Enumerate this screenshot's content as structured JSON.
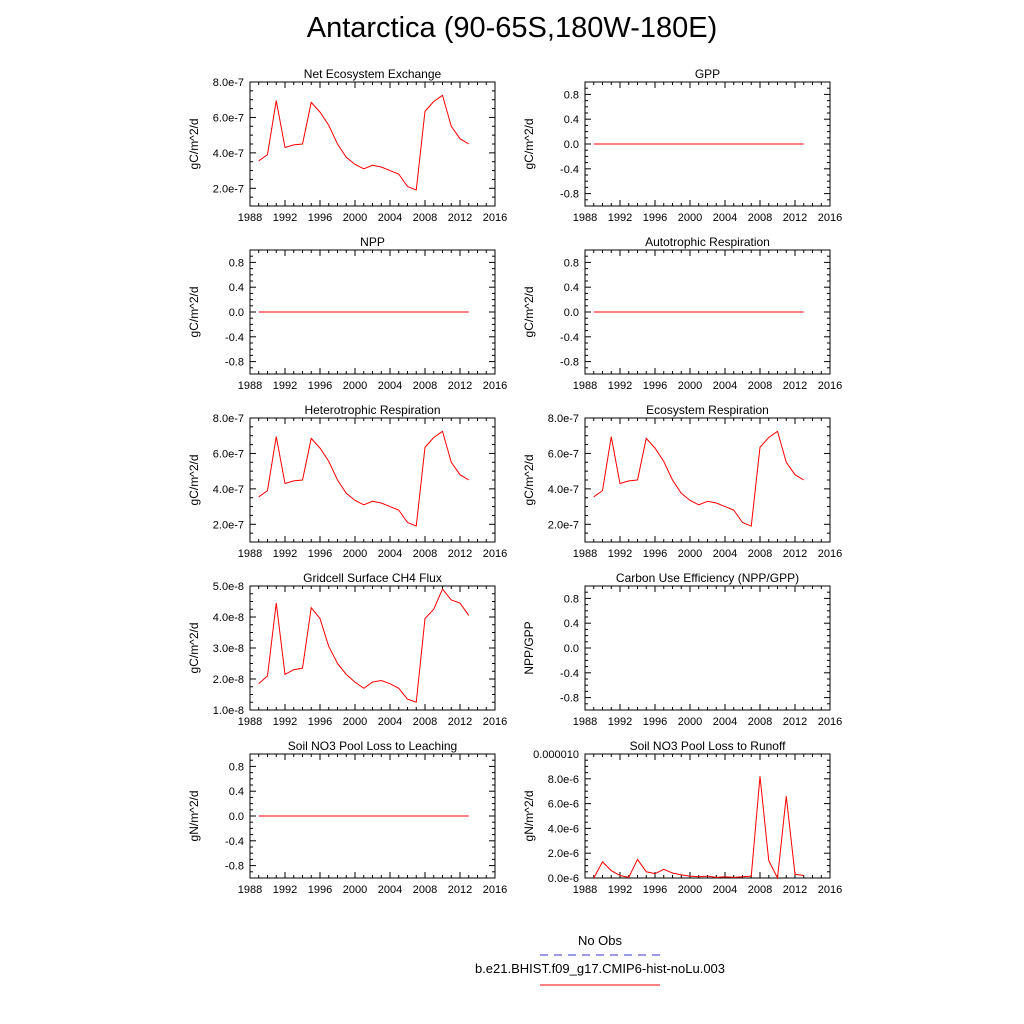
{
  "page": {
    "title": "Antarctica (90-65S,180W-180E)"
  },
  "style": {
    "series_color": "#ff0000",
    "obs_color": "#3333cc"
  },
  "legend": {
    "obs_label": "No Obs",
    "model_label": "b.e21.BHIST.f09_g17.CMIP6-hist-noLu.003"
  },
  "chart_data": [
    {
      "type": "line",
      "title": "Net Ecosystem Exchange",
      "ylabel": "gC/m^2/d",
      "xlim": [
        1988,
        2016
      ],
      "ylim": [
        1e-07,
        8e-07
      ],
      "xticks": [
        "1988",
        "1992",
        "1996",
        "2000",
        "2004",
        "2008",
        "2012",
        "2016"
      ],
      "yticks": [
        {
          "v": 2e-07,
          "label": "2.0e-7"
        },
        {
          "v": 4e-07,
          "label": "4.0e-7"
        },
        {
          "v": 6e-07,
          "label": "6.0e-7"
        },
        {
          "v": 8e-07,
          "label": "8.0e-7"
        }
      ],
      "x": [
        1989,
        1990,
        1991,
        1992,
        1993,
        1994,
        1995,
        1996,
        1997,
        1998,
        1999,
        2000,
        2001,
        2002,
        2003,
        2004,
        2005,
        2006,
        2007,
        2008,
        2009,
        2010,
        2011,
        2012,
        2013
      ],
      "values": [
        3.55e-07,
        3.9e-07,
        6.95e-07,
        4.3e-07,
        4.45e-07,
        4.5e-07,
        6.85e-07,
        6.3e-07,
        5.55e-07,
        4.5e-07,
        3.75e-07,
        3.35e-07,
        3.1e-07,
        3.3e-07,
        3.2e-07,
        3e-07,
        2.8e-07,
        2.1e-07,
        1.9e-07,
        6.35e-07,
        6.9e-07,
        7.25e-07,
        5.5e-07,
        4.8e-07,
        4.5e-07
      ]
    },
    {
      "type": "line",
      "title": "GPP",
      "ylabel": "gC/m^2/d",
      "xlim": [
        1988,
        2016
      ],
      "ylim": [
        -1.0,
        1.0
      ],
      "xticks": [
        "1988",
        "1992",
        "1996",
        "2000",
        "2004",
        "2008",
        "2012",
        "2016"
      ],
      "yticks": [
        {
          "v": -0.8,
          "label": "-0.8"
        },
        {
          "v": -0.4,
          "label": "-0.4"
        },
        {
          "v": 0.0,
          "label": "0.0"
        },
        {
          "v": 0.4,
          "label": "0.4"
        },
        {
          "v": 0.8,
          "label": "0.8"
        }
      ],
      "x": [
        1989,
        2013
      ],
      "values": [
        0,
        0
      ]
    },
    {
      "type": "line",
      "title": "NPP",
      "ylabel": "gC/m^2/d",
      "xlim": [
        1988,
        2016
      ],
      "ylim": [
        -1.0,
        1.0
      ],
      "xticks": [
        "1988",
        "1992",
        "1996",
        "2000",
        "2004",
        "2008",
        "2012",
        "2016"
      ],
      "yticks": [
        {
          "v": -0.8,
          "label": "-0.8"
        },
        {
          "v": -0.4,
          "label": "-0.4"
        },
        {
          "v": 0.0,
          "label": "0.0"
        },
        {
          "v": 0.4,
          "label": "0.4"
        },
        {
          "v": 0.8,
          "label": "0.8"
        }
      ],
      "x": [
        1989,
        2013
      ],
      "values": [
        0,
        0
      ]
    },
    {
      "type": "line",
      "title": "Autotrophic Respiration",
      "ylabel": "gC/m^2/d",
      "xlim": [
        1988,
        2016
      ],
      "ylim": [
        -1.0,
        1.0
      ],
      "xticks": [
        "1988",
        "1992",
        "1996",
        "2000",
        "2004",
        "2008",
        "2012",
        "2016"
      ],
      "yticks": [
        {
          "v": -0.8,
          "label": "-0.8"
        },
        {
          "v": -0.4,
          "label": "-0.4"
        },
        {
          "v": 0.0,
          "label": "0.0"
        },
        {
          "v": 0.4,
          "label": "0.4"
        },
        {
          "v": 0.8,
          "label": "0.8"
        }
      ],
      "x": [
        1989,
        2013
      ],
      "values": [
        0,
        0
      ]
    },
    {
      "type": "line",
      "title": "Heterotrophic Respiration",
      "ylabel": "gC/m^2/d",
      "xlim": [
        1988,
        2016
      ],
      "ylim": [
        1e-07,
        8e-07
      ],
      "xticks": [
        "1988",
        "1992",
        "1996",
        "2000",
        "2004",
        "2008",
        "2012",
        "2016"
      ],
      "yticks": [
        {
          "v": 2e-07,
          "label": "2.0e-7"
        },
        {
          "v": 4e-07,
          "label": "4.0e-7"
        },
        {
          "v": 6e-07,
          "label": "6.0e-7"
        },
        {
          "v": 8e-07,
          "label": "8.0e-7"
        }
      ],
      "x": [
        1989,
        1990,
        1991,
        1992,
        1993,
        1994,
        1995,
        1996,
        1997,
        1998,
        1999,
        2000,
        2001,
        2002,
        2003,
        2004,
        2005,
        2006,
        2007,
        2008,
        2009,
        2010,
        2011,
        2012,
        2013
      ],
      "values": [
        3.55e-07,
        3.9e-07,
        6.95e-07,
        4.3e-07,
        4.45e-07,
        4.5e-07,
        6.85e-07,
        6.3e-07,
        5.55e-07,
        4.5e-07,
        3.75e-07,
        3.35e-07,
        3.1e-07,
        3.3e-07,
        3.2e-07,
        3e-07,
        2.8e-07,
        2.1e-07,
        1.9e-07,
        6.35e-07,
        6.9e-07,
        7.25e-07,
        5.5e-07,
        4.8e-07,
        4.5e-07
      ]
    },
    {
      "type": "line",
      "title": "Ecosystem Respiration",
      "ylabel": "gC/m^2/d",
      "xlim": [
        1988,
        2016
      ],
      "ylim": [
        1e-07,
        8e-07
      ],
      "xticks": [
        "1988",
        "1992",
        "1996",
        "2000",
        "2004",
        "2008",
        "2012",
        "2016"
      ],
      "yticks": [
        {
          "v": 2e-07,
          "label": "2.0e-7"
        },
        {
          "v": 4e-07,
          "label": "4.0e-7"
        },
        {
          "v": 6e-07,
          "label": "6.0e-7"
        },
        {
          "v": 8e-07,
          "label": "8.0e-7"
        }
      ],
      "x": [
        1989,
        1990,
        1991,
        1992,
        1993,
        1994,
        1995,
        1996,
        1997,
        1998,
        1999,
        2000,
        2001,
        2002,
        2003,
        2004,
        2005,
        2006,
        2007,
        2008,
        2009,
        2010,
        2011,
        2012,
        2013
      ],
      "values": [
        3.55e-07,
        3.9e-07,
        6.95e-07,
        4.3e-07,
        4.45e-07,
        4.5e-07,
        6.85e-07,
        6.3e-07,
        5.55e-07,
        4.5e-07,
        3.75e-07,
        3.35e-07,
        3.1e-07,
        3.3e-07,
        3.2e-07,
        3e-07,
        2.8e-07,
        2.1e-07,
        1.9e-07,
        6.35e-07,
        6.9e-07,
        7.25e-07,
        5.5e-07,
        4.8e-07,
        4.5e-07
      ]
    },
    {
      "type": "line",
      "title": "Gridcell Surface CH4 Flux",
      "ylabel": "gC/m^2/d",
      "xlim": [
        1988,
        2016
      ],
      "ylim": [
        1e-08,
        5e-08
      ],
      "xticks": [
        "1988",
        "1992",
        "1996",
        "2000",
        "2004",
        "2008",
        "2012",
        "2016"
      ],
      "yticks": [
        {
          "v": 1e-08,
          "label": "1.0e-8"
        },
        {
          "v": 2e-08,
          "label": "2.0e-8"
        },
        {
          "v": 3e-08,
          "label": "3.0e-8"
        },
        {
          "v": 4e-08,
          "label": "4.0e-8"
        },
        {
          "v": 5e-08,
          "label": "5.0e-8"
        }
      ],
      "x": [
        1989,
        1990,
        1991,
        1992,
        1993,
        1994,
        1995,
        1996,
        1997,
        1998,
        1999,
        2000,
        2001,
        2002,
        2003,
        2004,
        2005,
        2006,
        2007,
        2008,
        2009,
        2010,
        2011,
        2012,
        2013
      ],
      "values": [
        1.85e-08,
        2.1e-08,
        4.45e-08,
        2.15e-08,
        2.3e-08,
        2.35e-08,
        4.3e-08,
        3.95e-08,
        3.05e-08,
        2.5e-08,
        2.15e-08,
        1.9e-08,
        1.7e-08,
        1.9e-08,
        1.95e-08,
        1.85e-08,
        1.7e-08,
        1.35e-08,
        1.25e-08,
        3.95e-08,
        4.25e-08,
        4.9e-08,
        4.55e-08,
        4.45e-08,
        4.05e-08
      ]
    },
    {
      "type": "line",
      "title": "Carbon Use Efficiency (NPP/GPP)",
      "ylabel": "NPP/GPP",
      "xlim": [
        1988,
        2016
      ],
      "ylim": [
        -1.0,
        1.0
      ],
      "xticks": [
        "1988",
        "1992",
        "1996",
        "2000",
        "2004",
        "2008",
        "2012",
        "2016"
      ],
      "yticks": [
        {
          "v": -0.8,
          "label": "-0.8"
        },
        {
          "v": -0.4,
          "label": "-0.4"
        },
        {
          "v": 0.0,
          "label": "0.0"
        },
        {
          "v": 0.4,
          "label": "0.4"
        },
        {
          "v": 0.8,
          "label": "0.8"
        }
      ],
      "x": [],
      "values": []
    },
    {
      "type": "line",
      "title": "Soil NO3 Pool Loss to Leaching",
      "ylabel": "gN/m^2/d",
      "xlim": [
        1988,
        2016
      ],
      "ylim": [
        -1.0,
        1.0
      ],
      "xticks": [
        "1988",
        "1992",
        "1996",
        "2000",
        "2004",
        "2008",
        "2012",
        "2016"
      ],
      "yticks": [
        {
          "v": -0.8,
          "label": "-0.8"
        },
        {
          "v": -0.4,
          "label": "-0.4"
        },
        {
          "v": 0.0,
          "label": "0.0"
        },
        {
          "v": 0.4,
          "label": "0.4"
        },
        {
          "v": 0.8,
          "label": "0.8"
        }
      ],
      "x": [
        1989,
        2013
      ],
      "values": [
        0,
        0
      ]
    },
    {
      "type": "line",
      "title": "Soil NO3 Pool Loss to Runoff",
      "ylabel": "gN/m^2/d",
      "xlim": [
        1988,
        2016
      ],
      "ylim": [
        0.0,
        1e-05
      ],
      "xticks": [
        "1988",
        "1992",
        "1996",
        "2000",
        "2004",
        "2008",
        "2012",
        "2016"
      ],
      "yticks": [
        {
          "v": 0.0,
          "label": "0.0e-6"
        },
        {
          "v": 2e-06,
          "label": "2.0e-6"
        },
        {
          "v": 4e-06,
          "label": "4.0e-6"
        },
        {
          "v": 6e-06,
          "label": "6.0e-6"
        },
        {
          "v": 8e-06,
          "label": "8.0e-6"
        },
        {
          "v": 1e-05,
          "label": "0.000010"
        }
      ],
      "x": [
        1989,
        1990,
        1991,
        1992,
        1993,
        1994,
        1995,
        1996,
        1997,
        1998,
        1999,
        2000,
        2001,
        2002,
        2003,
        2004,
        2005,
        2006,
        2007,
        2008,
        2009,
        2010,
        2011,
        2012,
        2013
      ],
      "values": [
        0.0,
        1.3e-06,
        6e-07,
        2e-07,
        5e-08,
        1.5e-06,
        5e-07,
        3.5e-07,
        7e-07,
        4e-07,
        2.5e-07,
        1.5e-07,
        1e-07,
        1.5e-07,
        5e-08,
        1e-07,
        5e-08,
        1e-07,
        1.5e-07,
        8.2e-06,
        1.4e-06,
        0.0,
        6.6e-06,
        3e-07,
        2e-07
      ]
    }
  ]
}
